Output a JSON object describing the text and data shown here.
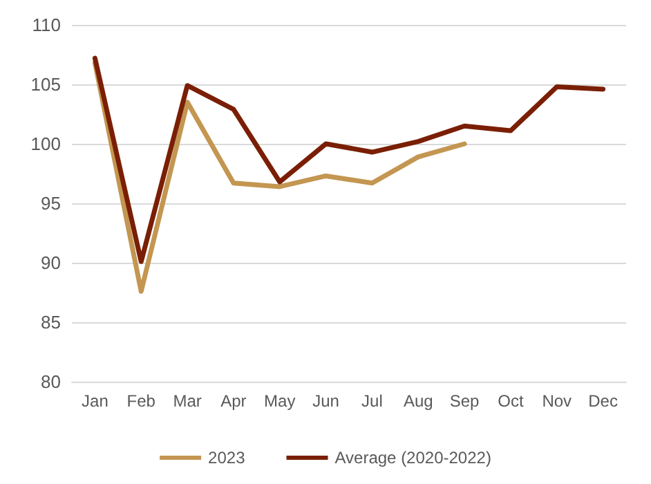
{
  "chart_data": {
    "type": "line",
    "categories": [
      "Jan",
      "Feb",
      "Mar",
      "Apr",
      "May",
      "Jun",
      "Jul",
      "Aug",
      "Sep",
      "Oct",
      "Nov",
      "Dec"
    ],
    "series": [
      {
        "name": "2023",
        "color": "#c39651",
        "values": [
          106.8,
          87.6,
          103.5,
          96.7,
          96.4,
          97.3,
          96.7,
          98.9,
          100,
          null,
          null,
          null
        ]
      },
      {
        "name": "Average (2020-2022)",
        "color": "#7a1f05",
        "values": [
          107.2,
          90.1,
          104.9,
          102.9,
          96.8,
          100,
          99.3,
          100.2,
          101.5,
          101.1,
          104.8,
          104.6
        ]
      }
    ],
    "ylim": [
      80,
      110
    ],
    "yticks": [
      80,
      85,
      90,
      95,
      100,
      105,
      110
    ],
    "grid": "y",
    "legend": "bottom",
    "marker": "none",
    "line_style": "solid"
  }
}
